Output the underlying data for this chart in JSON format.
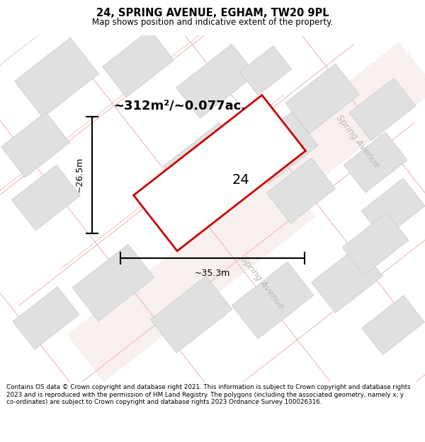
{
  "title": "24, SPRING AVENUE, EGHAM, TW20 9PL",
  "subtitle": "Map shows position and indicative extent of the property.",
  "footer": "Contains OS data © Crown copyright and database right 2021. This information is subject to Crown copyright and database rights 2023 and is reproduced with the permission of HM Land Registry. The polygons (including the associated geometry, namely x, y co-ordinates) are subject to Crown copyright and database rights 2023 Ordnance Survey 100026316.",
  "area_label": "~312m²/~0.077ac.",
  "width_label": "~35.3m",
  "height_label": "~26.5m",
  "property_number": "24",
  "map_bg": "#ffffff",
  "road_line_color": "#f0b8b8",
  "road_fill_color": "#f5e8e8",
  "block_color": "#e0e0e0",
  "block_edge_color": "#c8c8c8",
  "plot_color": "#cc0000",
  "spring_avenue_road_color": "#f0e0e0",
  "road_label_color": "#b0b0b0"
}
